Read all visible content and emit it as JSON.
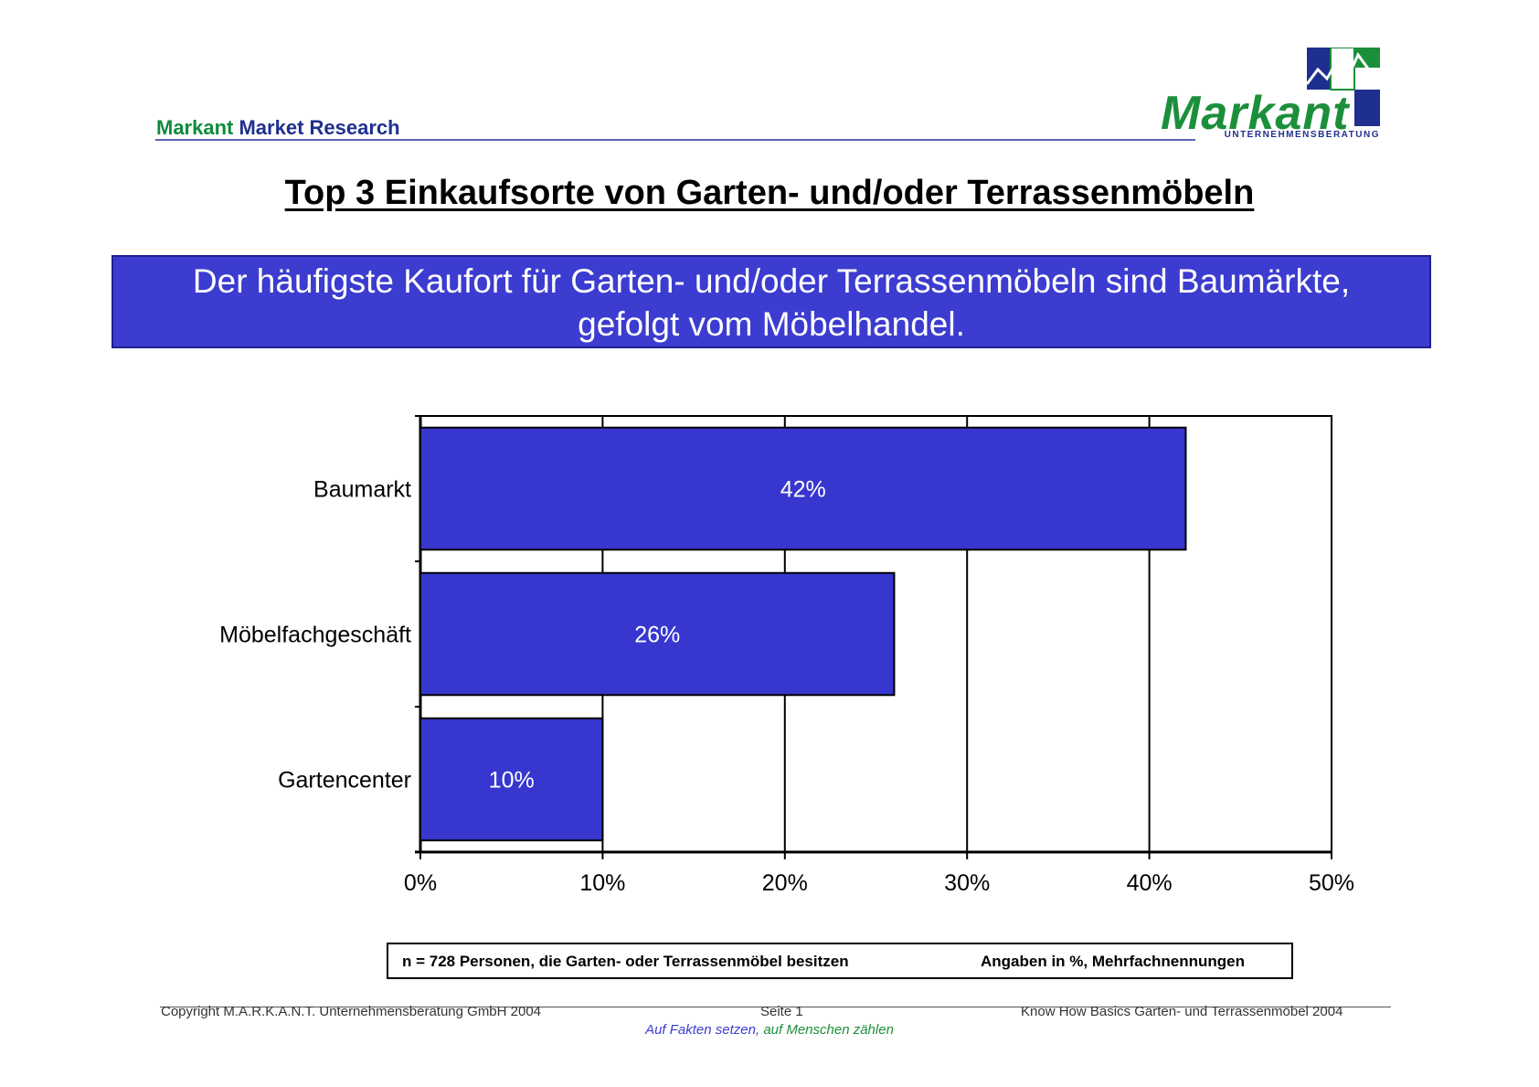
{
  "header": {
    "brand_part1": "Markant",
    "brand_part2": "Market Research",
    "logo_word": "Markant",
    "logo_sub": "UNTERNEHMENSBERATUNG"
  },
  "title": "Top 3 Einkaufsorte von Garten- und/oder Terrassenmöbeln",
  "banner": {
    "line1": "Der häufigste Kaufort für Garten- und/oder Terrassenmöbeln sind Baumärkte,",
    "line2": "gefolgt vom Möbelhandel."
  },
  "chart_data": {
    "type": "bar",
    "orientation": "horizontal",
    "categories": [
      "Baumarkt",
      "Möbelfachgeschäft",
      "Gartencenter"
    ],
    "values": [
      42,
      26,
      10
    ],
    "data_labels": [
      "42%",
      "26%",
      "10%"
    ],
    "xlim": [
      0,
      50
    ],
    "xticks": [
      0,
      10,
      20,
      30,
      40,
      50
    ],
    "xtick_labels": [
      "0%",
      "10%",
      "20%",
      "30%",
      "40%",
      "50%"
    ],
    "grid": true,
    "bar_color": "#3737cf",
    "bar_edge_color": "#000000"
  },
  "note": {
    "left": "n = 728 Personen, die Garten- oder Terrassenmöbel besitzen",
    "right": "Angaben in %, Mehrfachnennungen"
  },
  "footer": {
    "copyright": "Copyright  M.A.R.K.A.N.T. Unternehmensberatung GmbH 2004",
    "page": "Seite  1",
    "doc": "Know How Basics Garten- und Terrassenmöbel 2004",
    "slogan_part1": "Auf Fakten setzen,",
    "slogan_part2": "auf Menschen zählen"
  },
  "colors": {
    "accent_blue": "#3c3cd0",
    "brand_green": "#1b8f3a",
    "brand_navy": "#1f2f8f"
  }
}
